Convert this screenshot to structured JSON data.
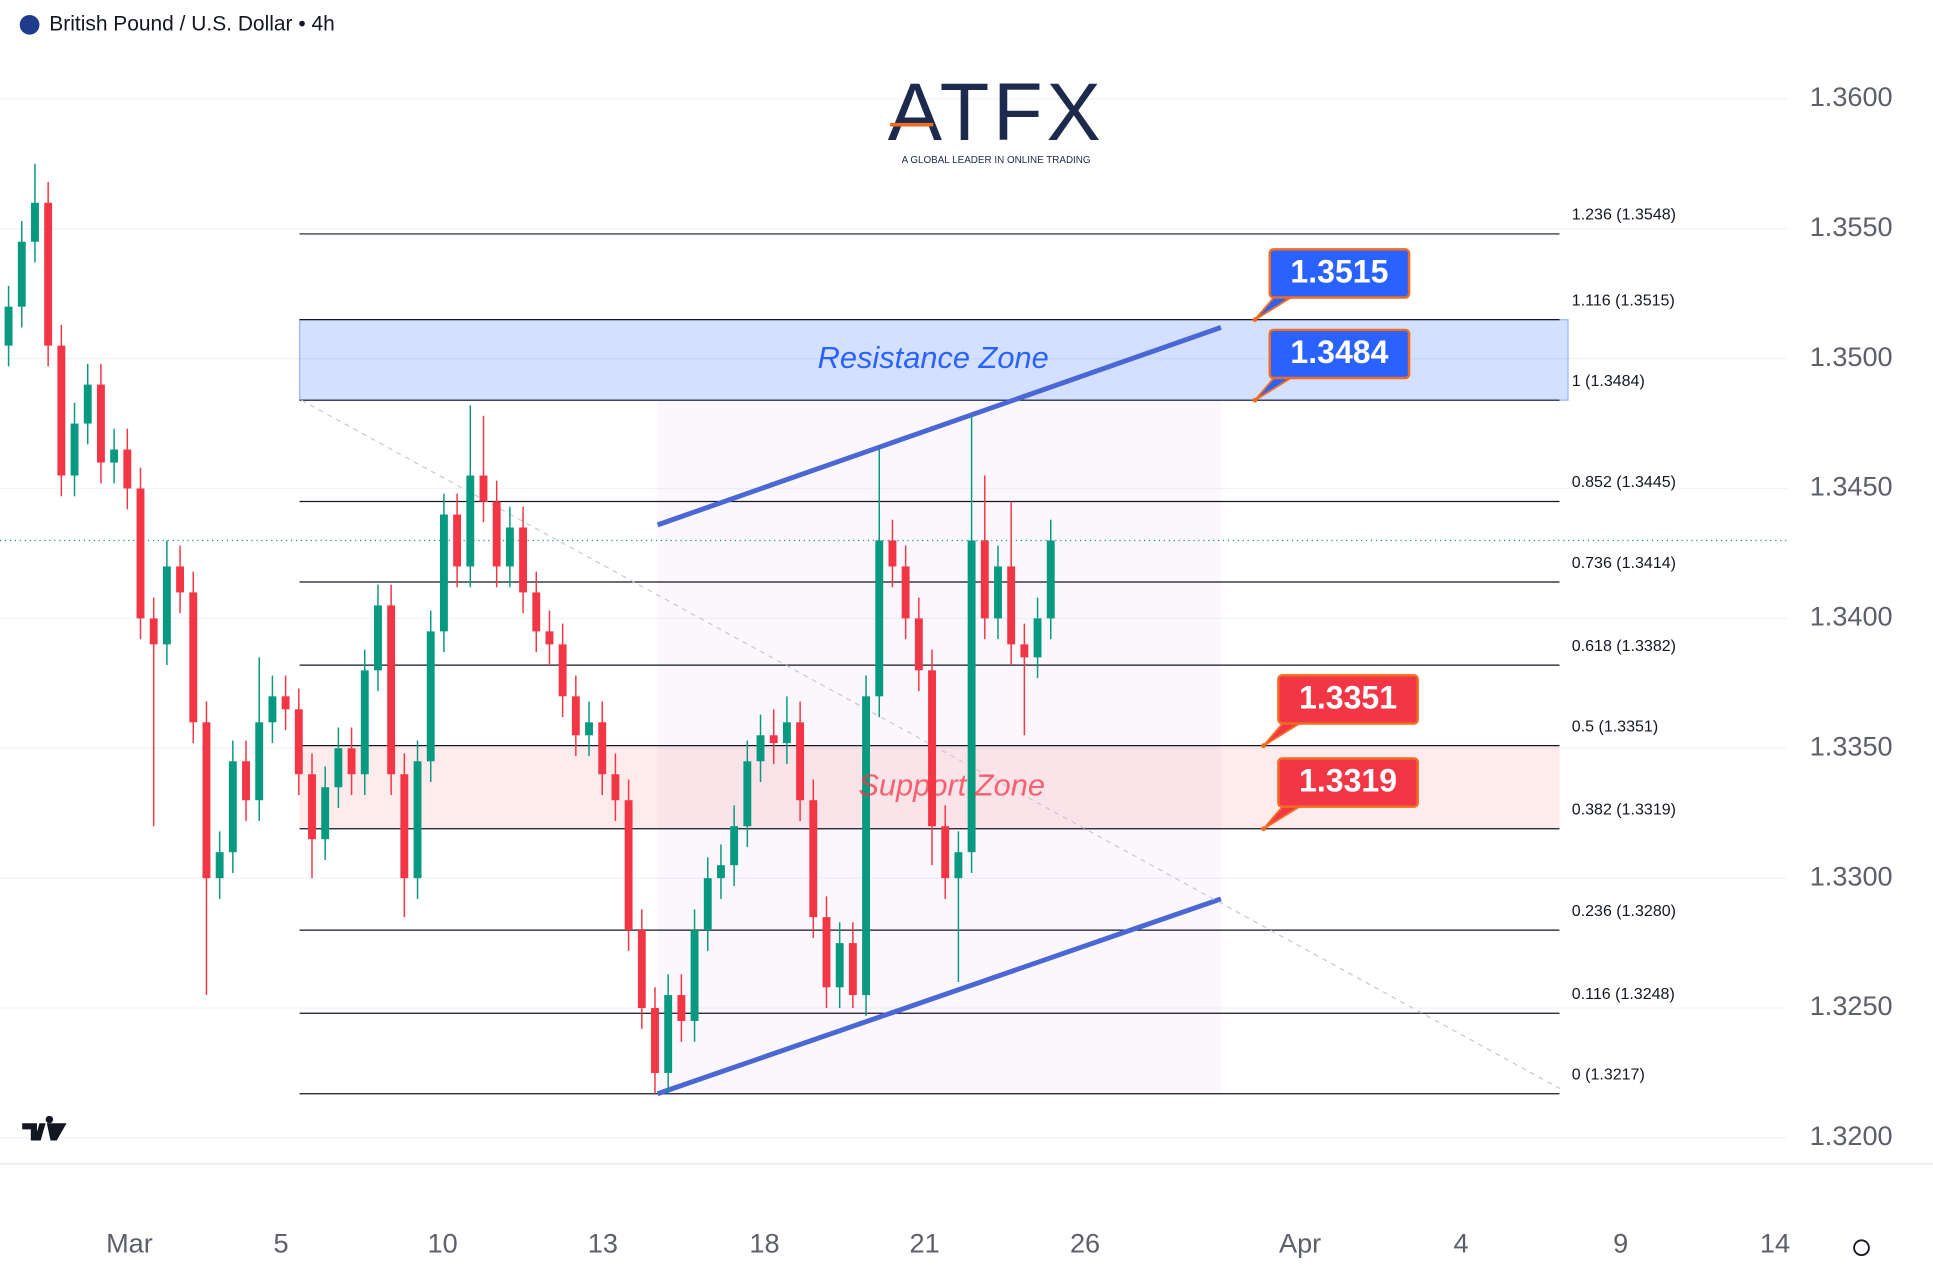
{
  "logo": {
    "name": "ATFX",
    "tagline": "A GLOBAL LEADER IN ONLINE TRADING"
  },
  "chart_data": {
    "type": "candlestick",
    "title": "British Pound / U.S. Dollar • 4h",
    "up_color": "#089981",
    "down_color": "#f23645",
    "open": [
      1.3505,
      1.352,
      1.3545,
      1.356,
      1.3505,
      1.3455,
      1.3475,
      1.349,
      1.346,
      1.3465,
      1.345,
      1.34,
      1.339,
      1.342,
      1.341,
      1.336,
      1.33,
      1.331,
      1.3345,
      1.333,
      1.336,
      1.337,
      1.3365,
      1.334,
      1.3315,
      1.3335,
      1.335,
      1.334,
      1.338,
      1.3405,
      1.334,
      1.33,
      1.3345,
      1.3395,
      1.344,
      1.342,
      1.3455,
      1.3445,
      1.342,
      1.3435,
      1.341,
      1.3395,
      1.339,
      1.337,
      1.3355,
      1.336,
      1.334,
      1.333,
      1.328,
      1.325,
      1.3225,
      1.3255,
      1.3245,
      1.328,
      1.33,
      1.3305,
      1.332,
      1.3345,
      1.3355,
      1.3352,
      1.336,
      1.333,
      1.3285,
      1.3258,
      1.3275,
      1.3255,
      1.337,
      1.343,
      1.342,
      1.34,
      1.338,
      1.332,
      1.33,
      1.331,
      1.343,
      1.34,
      1.342,
      1.339,
      1.3385,
      1.34
    ],
    "high": [
      1.3528,
      1.3553,
      1.3575,
      1.3568,
      1.3513,
      1.3483,
      1.3498,
      1.3498,
      1.3473,
      1.3473,
      1.3458,
      1.3408,
      1.343,
      1.3428,
      1.3418,
      1.3368,
      1.3318,
      1.3353,
      1.3353,
      1.3385,
      1.3378,
      1.3378,
      1.3373,
      1.3348,
      1.3343,
      1.3358,
      1.3358,
      1.3388,
      1.3413,
      1.3413,
      1.3348,
      1.3353,
      1.3403,
      1.3448,
      1.3448,
      1.3482,
      1.3478,
      1.3453,
      1.3443,
      1.3443,
      1.3418,
      1.3403,
      1.3398,
      1.3378,
      1.3368,
      1.3368,
      1.3348,
      1.3338,
      1.3288,
      1.3258,
      1.3263,
      1.3263,
      1.3288,
      1.3308,
      1.3313,
      1.3328,
      1.3353,
      1.3363,
      1.3365,
      1.337,
      1.3368,
      1.3338,
      1.3293,
      1.3283,
      1.3283,
      1.3378,
      1.3465,
      1.3438,
      1.3428,
      1.3408,
      1.3388,
      1.3328,
      1.3318,
      1.3478,
      1.3455,
      1.3428,
      1.3445,
      1.3398,
      1.3408,
      1.3438
    ],
    "low": [
      1.3497,
      1.3512,
      1.3537,
      1.3497,
      1.3447,
      1.3447,
      1.3467,
      1.3452,
      1.3452,
      1.3442,
      1.3392,
      1.332,
      1.3382,
      1.3402,
      1.3352,
      1.3255,
      1.3292,
      1.3302,
      1.3322,
      1.3322,
      1.3352,
      1.3357,
      1.3332,
      1.33,
      1.3307,
      1.3327,
      1.3332,
      1.3332,
      1.3372,
      1.3332,
      1.3285,
      1.3292,
      1.3337,
      1.3387,
      1.3412,
      1.3412,
      1.3437,
      1.3412,
      1.3412,
      1.3402,
      1.3387,
      1.3382,
      1.3362,
      1.3347,
      1.3347,
      1.3332,
      1.3322,
      1.3272,
      1.3242,
      1.3217,
      1.3217,
      1.3237,
      1.3237,
      1.3272,
      1.3292,
      1.3297,
      1.3312,
      1.3337,
      1.3344,
      1.3344,
      1.3322,
      1.3277,
      1.325,
      1.325,
      1.325,
      1.3247,
      1.3362,
      1.3412,
      1.3392,
      1.3372,
      1.3305,
      1.3292,
      1.326,
      1.3302,
      1.3392,
      1.3392,
      1.3382,
      1.3355,
      1.3377,
      1.3392
    ],
    "close": [
      1.352,
      1.3545,
      1.356,
      1.3505,
      1.3455,
      1.3475,
      1.349,
      1.346,
      1.3465,
      1.345,
      1.34,
      1.339,
      1.342,
      1.341,
      1.336,
      1.33,
      1.331,
      1.3345,
      1.333,
      1.336,
      1.337,
      1.3365,
      1.334,
      1.3315,
      1.3335,
      1.335,
      1.334,
      1.338,
      1.3405,
      1.334,
      1.33,
      1.3345,
      1.3395,
      1.344,
      1.342,
      1.3455,
      1.3445,
      1.342,
      1.3435,
      1.341,
      1.3395,
      1.339,
      1.337,
      1.3355,
      1.336,
      1.334,
      1.333,
      1.328,
      1.325,
      1.3225,
      1.3255,
      1.3245,
      1.328,
      1.33,
      1.3305,
      1.332,
      1.3345,
      1.3355,
      1.3352,
      1.336,
      1.333,
      1.3285,
      1.3258,
      1.3275,
      1.3255,
      1.337,
      1.343,
      1.342,
      1.34,
      1.338,
      1.332,
      1.33,
      1.331,
      1.343,
      1.34,
      1.342,
      1.339,
      1.3385,
      1.34,
      1.343
    ],
    "xlim": [
      -0.65,
      134.85
    ],
    "xticks": [
      {
        "value": 9.16,
        "label": "Mar"
      },
      {
        "value": 20.65,
        "label": "5"
      },
      {
        "value": 32.9,
        "label": "10"
      },
      {
        "value": 45.05,
        "label": "13"
      },
      {
        "value": 57.3,
        "label": "18"
      },
      {
        "value": 69.44,
        "label": "21"
      },
      {
        "value": 81.6,
        "label": "26"
      },
      {
        "value": 97.9,
        "label": "Apr"
      },
      {
        "value": 110.1,
        "label": "4"
      },
      {
        "value": 122.2,
        "label": "9"
      },
      {
        "value": 133.9,
        "label": "14"
      }
    ],
    "ylim": [
      1.319,
      1.3638
    ],
    "yticks": [
      {
        "value": 1.32,
        "label": "1.3200"
      },
      {
        "value": 1.325,
        "label": "1.3250"
      },
      {
        "value": 1.33,
        "label": "1.3300"
      },
      {
        "value": 1.335,
        "label": "1.3350"
      },
      {
        "value": 1.34,
        "label": "1.3400"
      },
      {
        "value": 1.345,
        "label": "1.3450"
      },
      {
        "value": 1.35,
        "label": "1.3500"
      },
      {
        "value": 1.355,
        "label": "1.3550"
      },
      {
        "value": 1.36,
        "label": "1.3600"
      }
    ],
    "grid": true,
    "fib_levels": [
      {
        "value": 1.3548,
        "label": "1.236 (1.3548)"
      },
      {
        "value": 1.3515,
        "label": "1.116 (1.3515)"
      },
      {
        "value": 1.3484,
        "label": "1 (1.3484)"
      },
      {
        "value": 1.3445,
        "label": "0.852 (1.3445)"
      },
      {
        "value": 1.3414,
        "label": "0.736 (1.3414)"
      },
      {
        "value": 1.3382,
        "label": "0.618 (1.3382)"
      },
      {
        "value": 1.3351,
        "label": "0.5 (1.3351)"
      },
      {
        "value": 1.3319,
        "label": "0.382 (1.3319)"
      },
      {
        "value": 1.328,
        "label": "0.236 (1.3280)"
      },
      {
        "value": 1.3248,
        "label": "0.116 (1.3248)"
      },
      {
        "value": 1.3217,
        "label": "0 (1.3217)"
      }
    ],
    "zones": [
      {
        "label": "Resistance Zone",
        "low": 1.3484,
        "high": 1.3515,
        "color": "#2962ff"
      },
      {
        "label": "Support Zone",
        "low": 1.3319,
        "high": 1.3351,
        "color": "#f23645"
      }
    ],
    "callouts": [
      {
        "value": 1.3515,
        "color": "#2962ff"
      },
      {
        "value": 1.3484,
        "color": "#2962ff"
      },
      {
        "value": 1.3351,
        "color": "#f23645"
      },
      {
        "value": 1.3319,
        "color": "#f23645"
      }
    ],
    "trendlines": [
      {
        "points": [
          [
            49.2,
            1.3436
          ],
          [
            91.9,
            1.3512
          ]
        ],
        "color": "#4a67d6",
        "style": "solid"
      },
      {
        "points": [
          [
            49.2,
            1.3217
          ],
          [
            91.9,
            1.3292
          ]
        ],
        "color": "#4a67d6",
        "style": "solid"
      },
      {
        "points": [
          [
            22.2,
            1.3484
          ],
          [
            117.6,
            1.3219
          ]
        ],
        "color": "#c8cad0",
        "style": "dashed"
      }
    ]
  }
}
